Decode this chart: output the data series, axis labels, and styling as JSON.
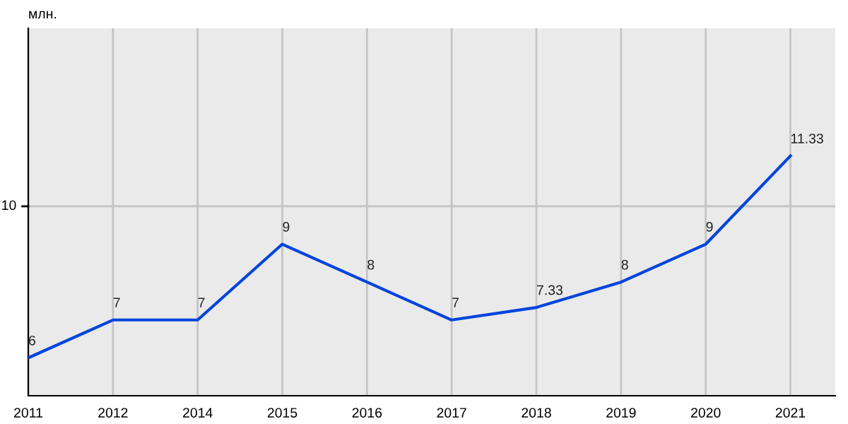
{
  "chart_data": {
    "type": "line",
    "ylabel": "млн.",
    "categories": [
      "2011",
      "2012",
      "2014",
      "2015",
      "2016",
      "2017",
      "2018",
      "2019",
      "2020",
      "2021"
    ],
    "series": [
      {
        "color": "#0044dd",
        "values": [
          6,
          7,
          7,
          9,
          8,
          7,
          7.33,
          8,
          9,
          11.33
        ]
      }
    ],
    "ylim": [
      5,
      14.7
    ],
    "ref_lines": [
      {
        "axis": "y",
        "value": 10,
        "label": "10",
        "color": "#c4c4c4"
      }
    ],
    "grid": "x",
    "data_labels": true,
    "marker": "none",
    "line_style": "solid"
  }
}
